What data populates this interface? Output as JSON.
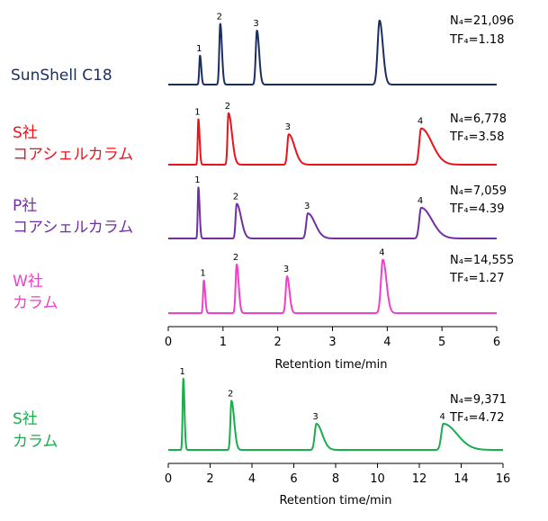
{
  "chart_data": [
    {
      "type": "line",
      "xlabel": "Retention time/min",
      "xlim": [
        0,
        6
      ],
      "xticks": [
        0,
        1,
        2,
        3,
        4,
        5,
        6
      ],
      "traces": [
        {
          "name": "SunShell C18",
          "name_line1": "SunShell C18",
          "name_line2": "",
          "color": "#1a2e5f",
          "stats": {
            "N": "N₄=21,096",
            "TF": "TF₄=1.18"
          },
          "peaks": [
            {
              "label": "1",
              "t": 0.58,
              "h": 0.43,
              "w": 0.014,
              "tail": 0.008
            },
            {
              "label": "2",
              "t": 0.95,
              "h": 0.9,
              "w": 0.018,
              "tail": 0.012
            },
            {
              "label": "3",
              "t": 1.62,
              "h": 0.8,
              "w": 0.022,
              "tail": 0.018
            },
            {
              "label": "",
              "t": 3.86,
              "h": 0.95,
              "w": 0.035,
              "tail": 0.025
            }
          ]
        },
        {
          "name": "S社 コアシェルカラム",
          "name_line1": "S社",
          "name_line2": "コアシェルカラム",
          "color": "#e8141c",
          "stats": {
            "N": "N₄=6,778",
            "TF": "TF₄=3.58"
          },
          "peaks": [
            {
              "label": "1",
              "t": 0.55,
              "h": 0.78,
              "w": 0.012,
              "tail": 0.01
            },
            {
              "label": "2",
              "t": 1.1,
              "h": 0.88,
              "w": 0.018,
              "tail": 0.045
            },
            {
              "label": "3",
              "t": 2.2,
              "h": 0.52,
              "w": 0.025,
              "tail": 0.08
            },
            {
              "label": "4",
              "t": 4.62,
              "h": 0.62,
              "w": 0.035,
              "tail": 0.16
            }
          ]
        },
        {
          "name": "P社 コアシェルカラム",
          "name_line1": "P社",
          "name_line2": "コアシェルカラム",
          "color": "#7030a0",
          "stats": {
            "N": "N₄=7,059",
            "TF": "TF₄=4.39"
          },
          "peaks": [
            {
              "label": "1",
              "t": 0.55,
              "h": 0.92,
              "w": 0.012,
              "tail": 0.01
            },
            {
              "label": "2",
              "t": 1.25,
              "h": 0.62,
              "w": 0.02,
              "tail": 0.06
            },
            {
              "label": "3",
              "t": 2.55,
              "h": 0.45,
              "w": 0.03,
              "tail": 0.1
            },
            {
              "label": "4",
              "t": 4.62,
              "h": 0.55,
              "w": 0.035,
              "tail": 0.16
            }
          ]
        },
        {
          "name": "W社 カラム",
          "name_line1": "W社",
          "name_line2": "カラム",
          "color": "#f23fc7",
          "stats": {
            "N": "N₄=14,555",
            "TF": "TF₄=1.27"
          },
          "peaks": [
            {
              "label": "1",
              "t": 0.65,
              "h": 0.55,
              "w": 0.014,
              "tail": 0.01
            },
            {
              "label": "2",
              "t": 1.25,
              "h": 0.82,
              "w": 0.02,
              "tail": 0.016
            },
            {
              "label": "3",
              "t": 2.17,
              "h": 0.62,
              "w": 0.024,
              "tail": 0.02
            },
            {
              "label": "4",
              "t": 3.92,
              "h": 0.9,
              "w": 0.035,
              "tail": 0.03
            }
          ]
        }
      ]
    },
    {
      "type": "line",
      "xlabel": "Retention time/min",
      "xlim": [
        0,
        16
      ],
      "xticks": [
        0,
        2,
        4,
        6,
        8,
        10,
        12,
        14,
        16
      ],
      "traces": [
        {
          "name": "S社 カラム",
          "name_line1": "S社",
          "name_line2": "カラム",
          "color": "#1aad4e",
          "stats": {
            "N": "N₄=9,371",
            "TF": "TF₄=4.72"
          },
          "peaks": [
            {
              "label": "1",
              "t": 0.72,
              "h": 0.9,
              "w": 0.035,
              "tail": 0.02
            },
            {
              "label": "2",
              "t": 3.02,
              "h": 0.62,
              "w": 0.05,
              "tail": 0.08
            },
            {
              "label": "3",
              "t": 7.08,
              "h": 0.33,
              "w": 0.08,
              "tail": 0.2
            },
            {
              "label": "4",
              "t": 13.15,
              "h": 0.33,
              "w": 0.1,
              "tail": 0.55
            }
          ]
        }
      ]
    }
  ]
}
